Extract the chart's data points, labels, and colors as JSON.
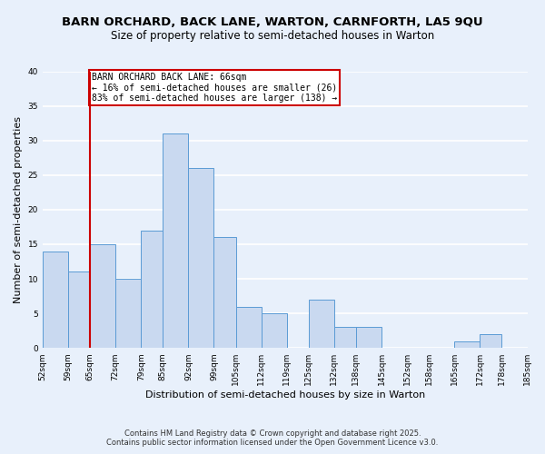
{
  "title": "BARN ORCHARD, BACK LANE, WARTON, CARNFORTH, LA5 9QU",
  "subtitle": "Size of property relative to semi-detached houses in Warton",
  "xlabel": "Distribution of semi-detached houses by size in Warton",
  "ylabel": "Number of semi-detached properties",
  "bins": [
    52,
    59,
    65,
    72,
    79,
    85,
    92,
    99,
    105,
    112,
    119,
    125,
    132,
    138,
    145,
    152,
    158,
    165,
    172,
    178,
    185
  ],
  "counts": [
    14,
    11,
    15,
    10,
    17,
    31,
    26,
    16,
    6,
    5,
    0,
    7,
    3,
    3,
    0,
    0,
    0,
    1,
    2,
    0
  ],
  "bar_face_color": "#c9d9f0",
  "bar_edge_color": "#5b9bd5",
  "background_color": "#e8f0fb",
  "grid_color": "#ffffff",
  "vline_x": 65,
  "vline_color": "#cc0000",
  "annotation_label": "BARN ORCHARD BACK LANE: 66sqm",
  "annotation_line1": "← 16% of semi-detached houses are smaller (26)",
  "annotation_line2": "83% of semi-detached houses are larger (138) →",
  "annotation_box_color": "#ffffff",
  "annotation_box_edge": "#cc0000",
  "ylim": [
    0,
    40
  ],
  "yticks": [
    0,
    5,
    10,
    15,
    20,
    25,
    30,
    35,
    40
  ],
  "tick_labels": [
    "52sqm",
    "59sqm",
    "65sqm",
    "72sqm",
    "79sqm",
    "85sqm",
    "92sqm",
    "99sqm",
    "105sqm",
    "112sqm",
    "119sqm",
    "125sqm",
    "132sqm",
    "138sqm",
    "145sqm",
    "152sqm",
    "158sqm",
    "165sqm",
    "172sqm",
    "178sqm",
    "185sqm"
  ],
  "footer1": "Contains HM Land Registry data © Crown copyright and database right 2025.",
  "footer2": "Contains public sector information licensed under the Open Government Licence v3.0.",
  "title_fontsize": 9.5,
  "subtitle_fontsize": 8.5,
  "ylabel_fontsize": 8,
  "xlabel_fontsize": 8,
  "tick_fontsize": 6.5,
  "footer_fontsize": 6,
  "annotation_fontsize": 7
}
